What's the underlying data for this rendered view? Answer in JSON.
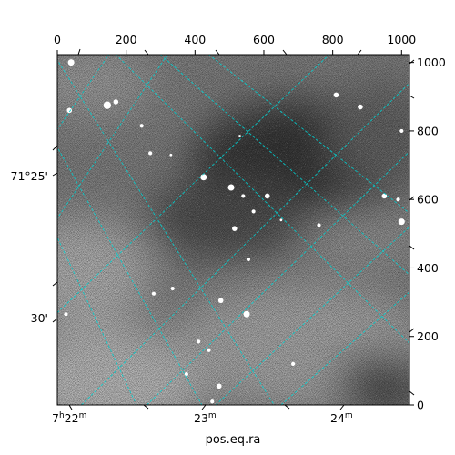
{
  "chart_data": {
    "type": "image",
    "title": "",
    "xlabel": "pos.eq.ra",
    "ylabel": "",
    "colormap": "gray",
    "pixel_axes": {
      "xlim": [
        0,
        1023
      ],
      "ylim": [
        0,
        1023
      ],
      "top_ticks": [
        0,
        200,
        400,
        600,
        800,
        1000
      ],
      "right_ticks": [
        0,
        200,
        400,
        600,
        800,
        1000
      ]
    },
    "world_axes": {
      "ra_ticks": [
        {
          "value_hours": 7.3667,
          "label_main": "7",
          "label_h": "h",
          "label_m_val": "22",
          "label_m": "m"
        },
        {
          "value_hours": 7.3833,
          "label_main": "23",
          "label_m": "m"
        },
        {
          "value_hours": 7.4,
          "label_main": "24",
          "label_m": "m"
        }
      ],
      "dec_ticks": [
        {
          "value_deg": 71.4167,
          "label": "71°25'"
        },
        {
          "value_deg": 71.5,
          "label": "30'"
        }
      ]
    },
    "grid": true,
    "grid_color": "#00d0d0",
    "sources": [
      {
        "x": 40,
        "y": 1000,
        "size": 5
      },
      {
        "x": 145,
        "y": 875,
        "size": 6
      },
      {
        "x": 170,
        "y": 885,
        "size": 4
      },
      {
        "x": 35,
        "y": 860,
        "size": 4
      },
      {
        "x": 245,
        "y": 815,
        "size": 3
      },
      {
        "x": 330,
        "y": 730,
        "size": 2
      },
      {
        "x": 270,
        "y": 735,
        "size": 3
      },
      {
        "x": 425,
        "y": 665,
        "size": 5
      },
      {
        "x": 505,
        "y": 635,
        "size": 5
      },
      {
        "x": 610,
        "y": 610,
        "size": 4
      },
      {
        "x": 540,
        "y": 610,
        "size": 3
      },
      {
        "x": 570,
        "y": 565,
        "size": 3
      },
      {
        "x": 515,
        "y": 515,
        "size": 4
      },
      {
        "x": 555,
        "y": 425,
        "size": 3
      },
      {
        "x": 650,
        "y": 540,
        "size": 2
      },
      {
        "x": 760,
        "y": 525,
        "size": 3
      },
      {
        "x": 950,
        "y": 610,
        "size": 4
      },
      {
        "x": 1000,
        "y": 535,
        "size": 5
      },
      {
        "x": 990,
        "y": 600,
        "size": 3
      },
      {
        "x": 810,
        "y": 905,
        "size": 4
      },
      {
        "x": 880,
        "y": 870,
        "size": 4
      },
      {
        "x": 1000,
        "y": 800,
        "size": 3
      },
      {
        "x": 530,
        "y": 785,
        "size": 2
      },
      {
        "x": 550,
        "y": 265,
        "size": 5
      },
      {
        "x": 475,
        "y": 305,
        "size": 4
      },
      {
        "x": 335,
        "y": 340,
        "size": 3
      },
      {
        "x": 280,
        "y": 325,
        "size": 3
      },
      {
        "x": 25,
        "y": 265,
        "size": 3
      },
      {
        "x": 440,
        "y": 160,
        "size": 3
      },
      {
        "x": 685,
        "y": 120,
        "size": 3
      },
      {
        "x": 375,
        "y": 90,
        "size": 3
      },
      {
        "x": 470,
        "y": 55,
        "size": 4
      },
      {
        "x": 450,
        "y": 10,
        "size": 3
      },
      {
        "x": 410,
        "y": 185,
        "size": 3
      }
    ]
  }
}
